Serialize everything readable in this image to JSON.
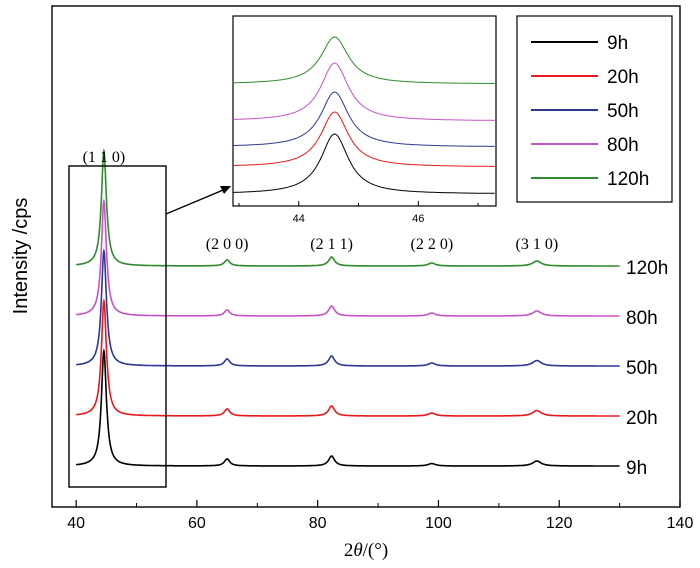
{
  "chart_data": {
    "type": "line",
    "title": "",
    "xlabel_prefix": "2",
    "xlabel_theta": "θ",
    "xlabel_suffix": "/(°)",
    "ylabel": "Intensity /cps",
    "xlim": [
      36,
      140
    ],
    "xticks": [
      40,
      60,
      80,
      100,
      120,
      140
    ],
    "grid": false,
    "legend_position": "top-right",
    "series": [
      {
        "name": "9h",
        "label": "9h",
        "color": "#000000"
      },
      {
        "name": "20h",
        "label": "20h",
        "color": "#e8191c"
      },
      {
        "name": "50h",
        "label": "50h",
        "color": "#2b3990"
      },
      {
        "name": "80h",
        "label": "80h",
        "color": "#c653c6"
      },
      {
        "name": "120h",
        "label": "120h",
        "color": "#2e8b2e"
      }
    ],
    "peaks": [
      {
        "hkl": "(1 1 0)",
        "two_theta": 44.6,
        "rel_intensity": 100
      },
      {
        "hkl": "(2 0 0)",
        "two_theta": 65.0,
        "rel_intensity": 9
      },
      {
        "hkl": "(2 1 1)",
        "two_theta": 82.3,
        "rel_intensity": 14
      },
      {
        "hkl": "(2 2 0)",
        "two_theta": 98.9,
        "rel_intensity": 4
      },
      {
        "hkl": "(3 1 0)",
        "two_theta": 116.3,
        "rel_intensity": 6
      }
    ],
    "inset": {
      "xlim": [
        42.9,
        47.3
      ],
      "xticks": [
        44,
        46
      ],
      "peak_center": 44.6
    }
  }
}
